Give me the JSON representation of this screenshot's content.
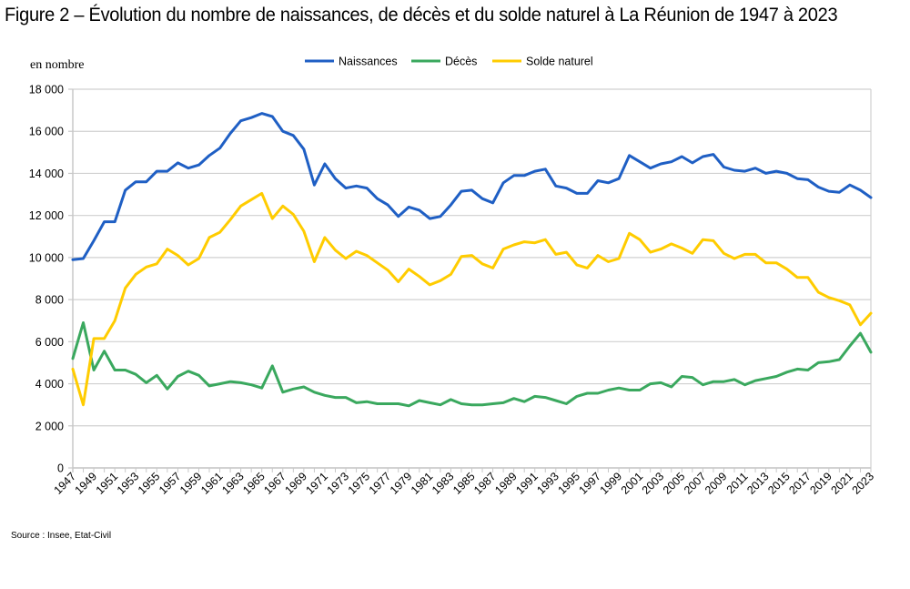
{
  "figure": {
    "title": "Figure 2 – Évolution du nombre de naissances, de décès et du solde naturel à La Réunion de 1947 à 2023",
    "unit_label": "en nombre",
    "source": "Source : Insee, Etat-Civil"
  },
  "chart_data": {
    "type": "line",
    "title": "Évolution du nombre de naissances, de décès et du solde naturel à La Réunion de 1947 à 2023",
    "xlabel": "",
    "ylabel": "en nombre",
    "ylim": [
      0,
      18000
    ],
    "yticks": [
      0,
      2000,
      4000,
      6000,
      8000,
      10000,
      12000,
      14000,
      16000,
      18000
    ],
    "ytick_labels": [
      "0",
      "2 000",
      "4 000",
      "6 000",
      "8 000",
      "10 000",
      "12 000",
      "14 000",
      "16 000",
      "18 000"
    ],
    "grid": true,
    "legend_position": "top-center",
    "x": [
      1947,
      1948,
      1949,
      1950,
      1951,
      1952,
      1953,
      1954,
      1955,
      1956,
      1957,
      1958,
      1959,
      1960,
      1961,
      1962,
      1963,
      1964,
      1965,
      1966,
      1967,
      1968,
      1969,
      1970,
      1971,
      1972,
      1973,
      1974,
      1975,
      1976,
      1977,
      1978,
      1979,
      1980,
      1981,
      1982,
      1983,
      1984,
      1985,
      1986,
      1987,
      1988,
      1989,
      1990,
      1991,
      1992,
      1993,
      1994,
      1995,
      1996,
      1997,
      1998,
      1999,
      2000,
      2001,
      2002,
      2003,
      2004,
      2005,
      2006,
      2007,
      2008,
      2009,
      2010,
      2011,
      2012,
      2013,
      2014,
      2015,
      2016,
      2017,
      2018,
      2019,
      2020,
      2021,
      2022,
      2023
    ],
    "xtick_labels": [
      "1947",
      "1949",
      "1951",
      "1953",
      "1955",
      "1957",
      "1959",
      "1961",
      "1963",
      "1965",
      "1967",
      "1969",
      "1971",
      "1973",
      "1975",
      "1977",
      "1979",
      "1981",
      "1983",
      "1985",
      "1987",
      "1989",
      "1991",
      "1993",
      "1995",
      "1997",
      "1999",
      "2001",
      "2003",
      "2005",
      "2007",
      "2009",
      "2011",
      "2013",
      "2015",
      "2017",
      "2019",
      "2021",
      "2023"
    ],
    "series": [
      {
        "name": "Naissances",
        "color": "#1f5fc4",
        "values": [
          9900,
          9950,
          10800,
          11700,
          11700,
          13200,
          13600,
          13600,
          14100,
          14100,
          14500,
          14250,
          14400,
          14850,
          15200,
          15900,
          16500,
          16650,
          16850,
          16700,
          16000,
          15800,
          15150,
          13450,
          14450,
          13750,
          13300,
          13400,
          13300,
          12800,
          12500,
          11950,
          12400,
          12250,
          11850,
          11950,
          12500,
          13150,
          13200,
          12800,
          12600,
          13550,
          13900,
          13900,
          14100,
          14200,
          13400,
          13300,
          13050,
          13050,
          13650,
          13550,
          13750,
          14850,
          14550,
          14250,
          14450,
          14550,
          14800,
          14500,
          14800,
          14900,
          14300,
          14150,
          14100,
          14250,
          14000,
          14100,
          14000,
          13750,
          13700,
          13350,
          13150,
          13100,
          13450,
          13200,
          12850
        ]
      },
      {
        "name": "Décès",
        "color": "#3aa85e",
        "values": [
          5200,
          6900,
          4650,
          5550,
          4650,
          4650,
          4450,
          4050,
          4400,
          3750,
          4350,
          4600,
          4400,
          3900,
          4000,
          4100,
          4050,
          3950,
          3800,
          4850,
          3600,
          3750,
          3850,
          3600,
          3450,
          3350,
          3350,
          3100,
          3150,
          3050,
          3050,
          3050,
          2950,
          3200,
          3100,
          3000,
          3250,
          3050,
          3000,
          3000,
          3050,
          3100,
          3300,
          3150,
          3400,
          3350,
          3200,
          3050,
          3400,
          3550,
          3550,
          3700,
          3800,
          3700,
          3700,
          4000,
          4050,
          3850,
          4350,
          4300,
          3950,
          4100,
          4100,
          4200,
          3950,
          4150,
          4250,
          4350,
          4550,
          4700,
          4650,
          5000,
          5050,
          5150,
          5800,
          6400,
          5500
        ]
      },
      {
        "name": "Solde naturel",
        "color": "#ffcc00",
        "values": [
          4700,
          3000,
          6150,
          6150,
          7000,
          8550,
          9200,
          9550,
          9700,
          10400,
          10100,
          9650,
          9950,
          10950,
          11200,
          11800,
          12450,
          12750,
          13050,
          11850,
          12450,
          12050,
          11250,
          9800,
          10950,
          10350,
          9950,
          10300,
          10100,
          9750,
          9400,
          8850,
          9450,
          9100,
          8700,
          8900,
          9200,
          10050,
          10100,
          9700,
          9500,
          10400,
          10600,
          10750,
          10700,
          10850,
          10150,
          10250,
          9650,
          9500,
          10100,
          9800,
          9950,
          11150,
          10850,
          10250,
          10400,
          10650,
          10450,
          10200,
          10850,
          10800,
          10200,
          9950,
          10150,
          10150,
          9750,
          9750,
          9450,
          9050,
          9050,
          8350,
          8100,
          7950,
          7750,
          6800,
          7350
        ]
      }
    ]
  }
}
